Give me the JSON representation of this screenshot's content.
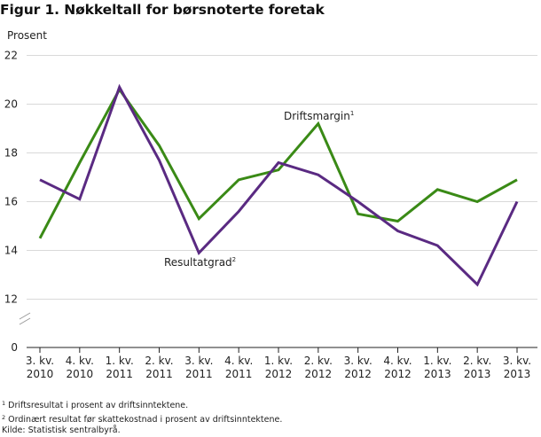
{
  "title": "Figur 1. Nøkkeltall for børsnoterte foretak",
  "chart_data": {
    "type": "line",
    "ylabel": "Prosent",
    "ylim": [
      0,
      22
    ],
    "yticks": [
      0,
      12,
      14,
      16,
      18,
      20,
      22
    ],
    "axis_break": true,
    "grid": true,
    "categories": [
      [
        "3. kv.",
        "2010"
      ],
      [
        "4. kv.",
        "2010"
      ],
      [
        "1. kv.",
        "2011"
      ],
      [
        "2. kv.",
        "2011"
      ],
      [
        "3. kv.",
        "2011"
      ],
      [
        "4. kv.",
        "2011"
      ],
      [
        "1. kv.",
        "2012"
      ],
      [
        "2. kv.",
        "2012"
      ],
      [
        "3. kv.",
        "2012"
      ],
      [
        "4. kv.",
        "2012"
      ],
      [
        "1. kv.",
        "2013"
      ],
      [
        "2. kv.",
        "2013"
      ],
      [
        "3. kv.",
        "2013"
      ]
    ],
    "series": [
      {
        "name": "Driftsmargin",
        "sup": "1",
        "color": "#3a8a16",
        "values": [
          14.5,
          17.6,
          20.6,
          18.3,
          15.3,
          16.9,
          17.3,
          19.2,
          15.5,
          15.2,
          16.5,
          16.0,
          16.9
        ]
      },
      {
        "name": "Resultatgrad",
        "sup": "2",
        "color": "#5a2a82",
        "values": [
          16.9,
          16.1,
          20.7,
          17.7,
          13.9,
          15.6,
          17.6,
          17.1,
          16.0,
          14.8,
          14.2,
          12.6,
          16.0
        ]
      }
    ]
  },
  "footnotes": [
    {
      "sup": "1",
      "text": " Driftsresultat i prosent av driftsinntektene."
    },
    {
      "sup": "2",
      "text": " Ordinært resultat før skattekostnad i prosent av driftsinntektene."
    }
  ],
  "source": "Kilde: Statistisk sentralbyrå."
}
